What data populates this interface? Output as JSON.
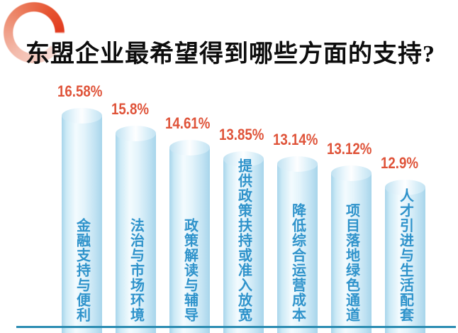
{
  "title": "东盟企业最希望得到哪些方面的支持?",
  "chart_data": {
    "type": "bar",
    "orientation": "vertical",
    "bar_shape": "cylinder",
    "title": "东盟企业最希望得到哪些方面的支持?",
    "categories": [
      "金融支持与便利",
      "法治与市场环境",
      "政策解读与辅导",
      "提供政策扶持或准入放宽",
      "降低综合运营成本",
      "项目落地绿色通道",
      "人才引进与生活配套"
    ],
    "values": [
      16.58,
      15.8,
      14.61,
      13.85,
      13.14,
      13.12,
      12.9
    ],
    "value_labels": [
      "16.58%",
      "15.8%",
      "14.61%",
      "13.85%",
      "13.14%",
      "13.12%",
      "12.9%"
    ],
    "unit": "%",
    "legend": "none",
    "grid": "off",
    "value_axis": "hidden",
    "baseline": "solid"
  },
  "colors": {
    "ring_accent": "#e23b1f",
    "value_label": "#df5339",
    "category_label": "#2f93cb",
    "baseline": "#2b8cb2",
    "bar_highlight": "#f3fbfe",
    "bar_edge": "#a7d5eb",
    "title_text": "#0d0d0d"
  },
  "icons": {
    "ring_decoration": "gradient-ring"
  }
}
